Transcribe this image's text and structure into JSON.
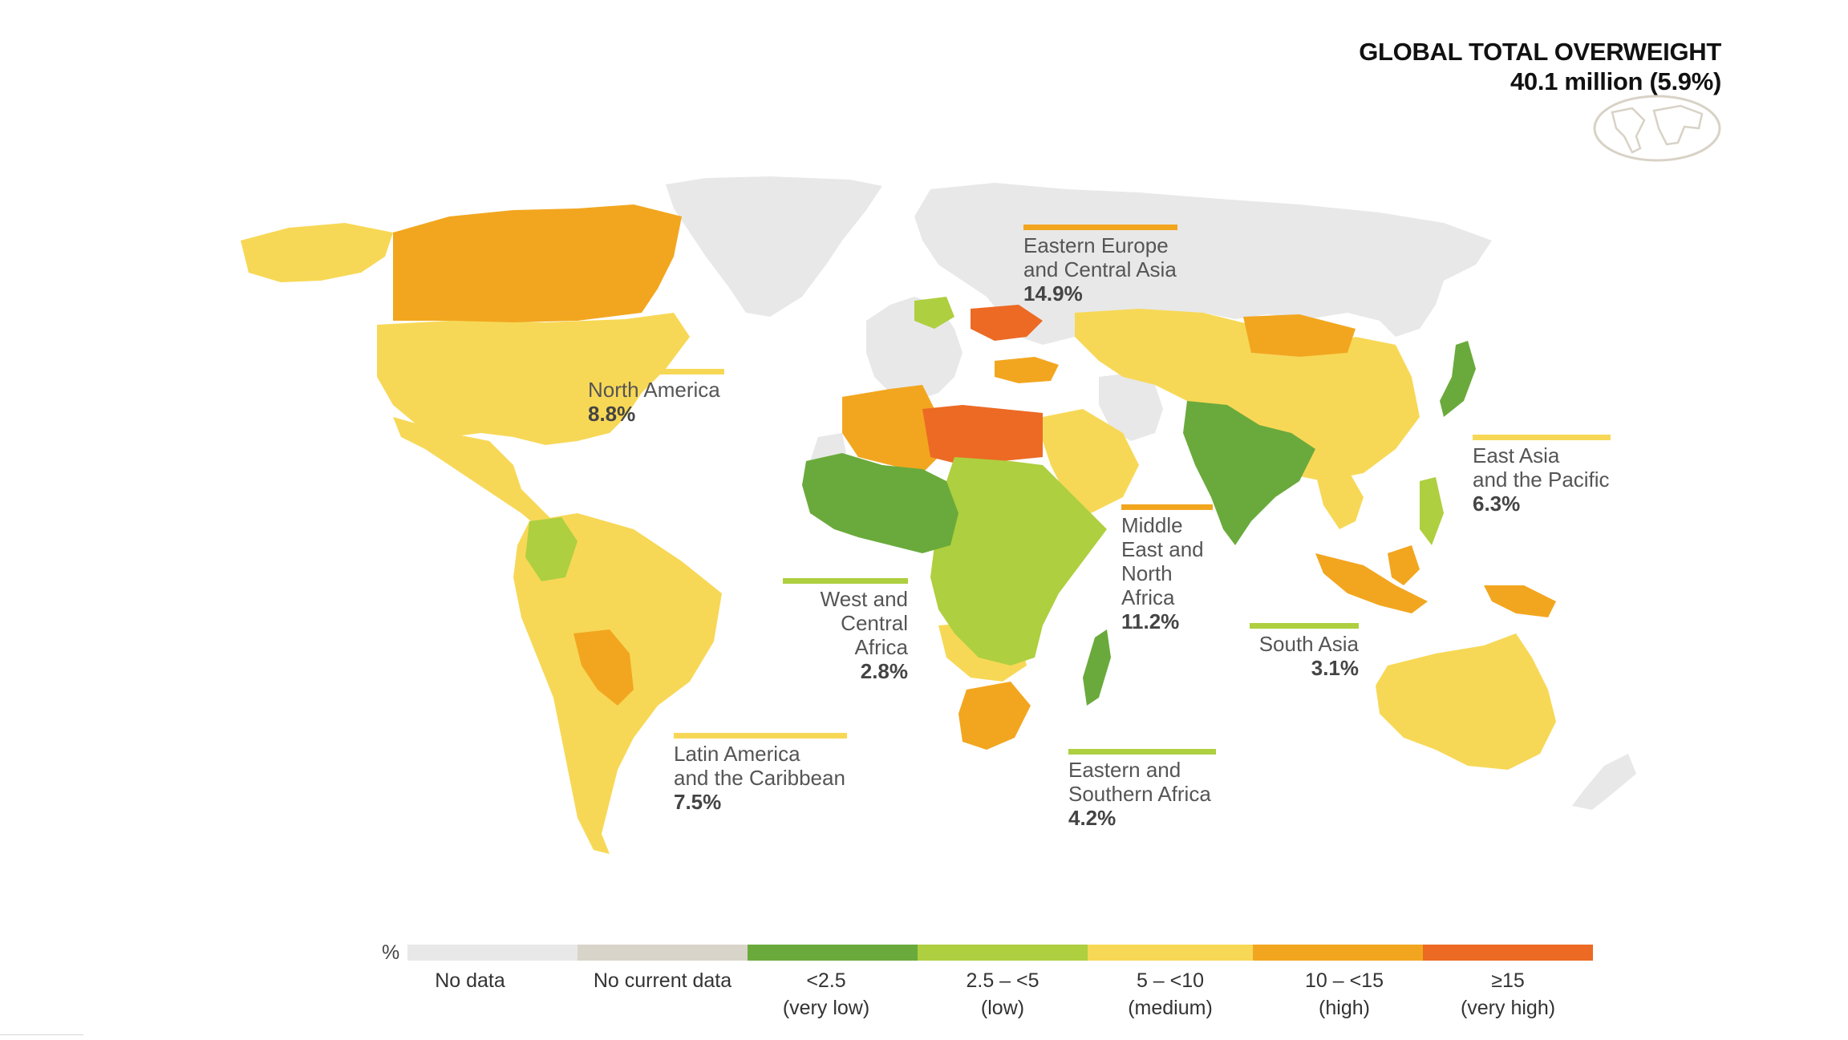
{
  "title": {
    "line1": "GLOBAL TOTAL OVERWEIGHT",
    "line2": "40.1 million (5.9%)"
  },
  "colors": {
    "no_data": "#e8e8e8",
    "no_current_data": "#d9d4c9",
    "very_low": "#6aaa3c",
    "low": "#aecf3f",
    "medium": "#f7d856",
    "high": "#f2a61f",
    "very_high": "#ec6a24",
    "ocean": "#ffffff"
  },
  "regions": [
    {
      "id": "north-america",
      "name": "North America",
      "value": "8.8%",
      "category": "medium"
    },
    {
      "id": "latin-america",
      "name": "Latin America\nand the Caribbean",
      "value": "7.5%",
      "category": "medium"
    },
    {
      "id": "west-central-africa",
      "name": "West and\nCentral Africa",
      "value": "2.8%",
      "category": "low"
    },
    {
      "id": "eastern-europe-central-asia",
      "name": "Eastern Europe\nand Central Asia",
      "value": "14.9%",
      "category": "high"
    },
    {
      "id": "middle-east-north-africa",
      "name": "Middle\nEast and\nNorth Africa",
      "value": "11.2%",
      "category": "high"
    },
    {
      "id": "eastern-southern-africa",
      "name": "Eastern and\nSouthern Africa",
      "value": "4.2%",
      "category": "low"
    },
    {
      "id": "south-asia",
      "name": "South Asia",
      "value": "3.1%",
      "category": "low"
    },
    {
      "id": "east-asia-pacific",
      "name": "East Asia\nand the Pacific",
      "value": "6.3%",
      "category": "medium"
    }
  ],
  "legend": {
    "unit": "%",
    "items": [
      {
        "label": "No data",
        "category": "no_data"
      },
      {
        "label": "No current data",
        "category": "no_current_data"
      },
      {
        "label": "<2.5\n(very low)",
        "category": "very_low"
      },
      {
        "label": "2.5 – <5\n(low)",
        "category": "low"
      },
      {
        "label": "5 – <10\n(medium)",
        "category": "medium"
      },
      {
        "label": "10 – <15\n(high)",
        "category": "high"
      },
      {
        "label": "≥15\n(very high)",
        "category": "very_high"
      }
    ]
  }
}
